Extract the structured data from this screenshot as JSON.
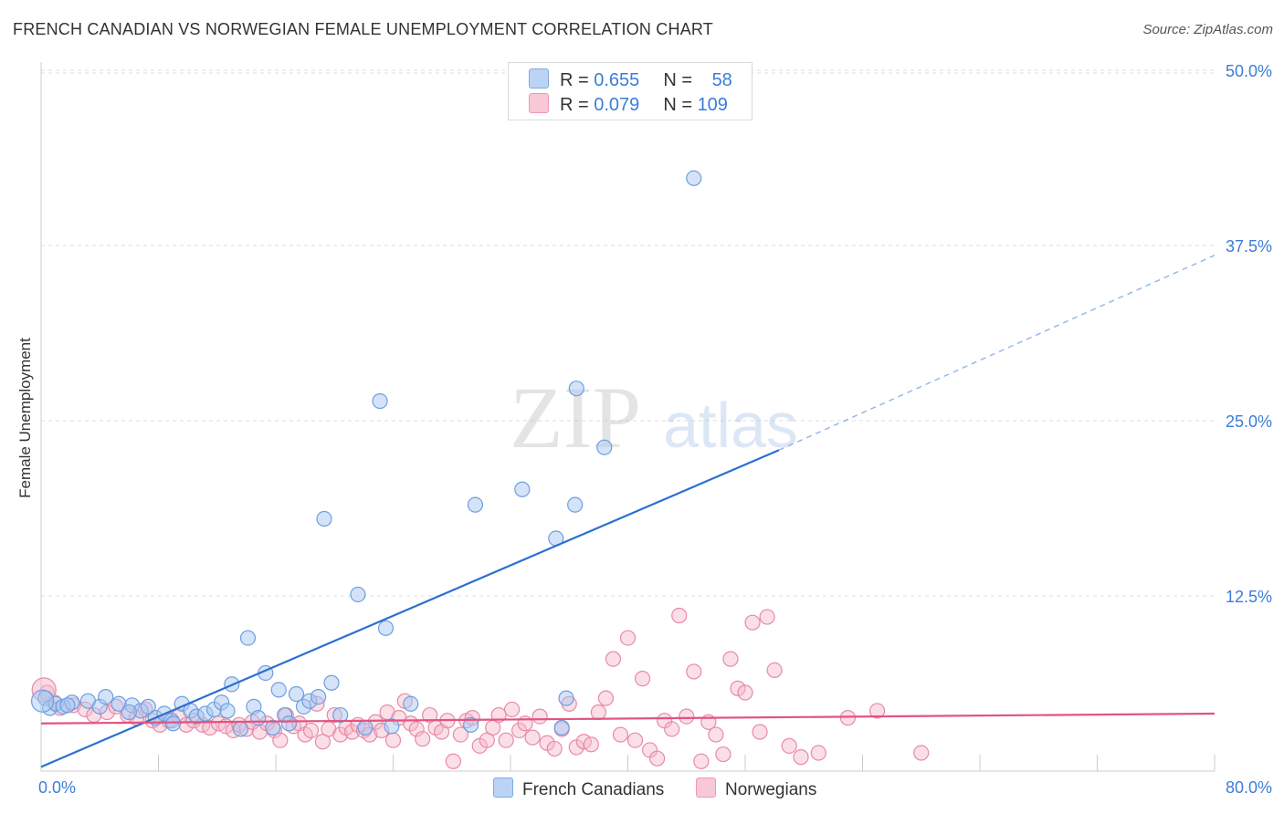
{
  "header": {
    "title": "FRENCH CANADIAN VS NORWEGIAN FEMALE UNEMPLOYMENT CORRELATION CHART",
    "source": "Source: ZipAtlas.com"
  },
  "watermark": {
    "zip": "ZIP",
    "atlas": "atlas"
  },
  "colors": {
    "blue_fill": "#a9c8f2",
    "blue_stroke": "#6d9fe0",
    "blue_line": "#2b6fd1",
    "pink_fill": "#f4b8ca",
    "pink_stroke": "#e88aa8",
    "pink_line": "#e2547e",
    "axis_label": "#3b7dd8",
    "grid": "#dddddd"
  },
  "legend": {
    "rows": [
      {
        "r_label": "R = ",
        "r_value": "0.655",
        "n_label": "N = ",
        "n_value": "58"
      },
      {
        "r_label": "R = ",
        "r_value": "0.079",
        "n_label": "N = ",
        "n_value": "109"
      }
    ]
  },
  "chart_data": {
    "type": "scatter",
    "title": "FRENCH CANADIAN VS NORWEGIAN FEMALE UNEMPLOYMENT CORRELATION CHART",
    "xlabel": "",
    "ylabel": "Female Unemployment",
    "xlim": [
      0,
      80
    ],
    "ylim": [
      0,
      52
    ],
    "x_tick_labels": [
      "0.0%",
      "80.0%"
    ],
    "y_ticks": [
      12.5,
      25.0,
      37.5,
      50.0
    ],
    "y_tick_labels": [
      "12.5%",
      "25.0%",
      "37.5%",
      "50.0%"
    ],
    "grid": true,
    "legend_position": "top-center",
    "series": [
      {
        "name": "French Canadians",
        "r": 0.655,
        "n": 58,
        "trend": {
          "x0": 0,
          "y0": 0.3,
          "x1": 50.3,
          "y1": 22.9,
          "dashed_to_x": 80,
          "dashed_to_y": 36.8
        },
        "points": [
          [
            0.3,
            5.2
          ],
          [
            0.6,
            4.5
          ],
          [
            1.0,
            4.8
          ],
          [
            1.5,
            4.6
          ],
          [
            2.1,
            4.9
          ],
          [
            3.2,
            5.0
          ],
          [
            4.0,
            4.6
          ],
          [
            4.4,
            5.3
          ],
          [
            5.3,
            4.8
          ],
          [
            6.2,
            4.7
          ],
          [
            6.8,
            4.3
          ],
          [
            7.3,
            4.6
          ],
          [
            7.8,
            3.8
          ],
          [
            8.4,
            4.1
          ],
          [
            8.9,
            3.6
          ],
          [
            9.6,
            4.8
          ],
          [
            10.2,
            4.3
          ],
          [
            10.6,
            3.9
          ],
          [
            11.2,
            4.1
          ],
          [
            11.8,
            4.4
          ],
          [
            12.3,
            4.9
          ],
          [
            12.7,
            4.3
          ],
          [
            13.0,
            6.2
          ],
          [
            13.6,
            3.0
          ],
          [
            14.1,
            9.5
          ],
          [
            14.5,
            4.6
          ],
          [
            14.8,
            3.8
          ],
          [
            15.3,
            7.0
          ],
          [
            16.2,
            5.8
          ],
          [
            16.6,
            4.0
          ],
          [
            16.9,
            3.4
          ],
          [
            17.4,
            5.5
          ],
          [
            17.9,
            4.6
          ],
          [
            18.3,
            5.0
          ],
          [
            18.9,
            5.3
          ],
          [
            19.3,
            18.0
          ],
          [
            19.8,
            6.3
          ],
          [
            20.4,
            4.0
          ],
          [
            21.6,
            12.6
          ],
          [
            22.1,
            3.1
          ],
          [
            23.1,
            26.4
          ],
          [
            23.5,
            10.2
          ],
          [
            23.9,
            3.2
          ],
          [
            25.2,
            4.8
          ],
          [
            29.3,
            3.3
          ],
          [
            29.6,
            19.0
          ],
          [
            32.8,
            20.1
          ],
          [
            35.1,
            16.6
          ],
          [
            35.5,
            3.1
          ],
          [
            35.8,
            5.2
          ],
          [
            36.4,
            19.0
          ],
          [
            36.5,
            27.3
          ],
          [
            38.4,
            23.1
          ],
          [
            44.5,
            42.3
          ],
          [
            1.8,
            4.7
          ],
          [
            6.0,
            4.2
          ],
          [
            9.0,
            3.4
          ],
          [
            15.8,
            3.1
          ]
        ]
      },
      {
        "name": "Norwegians",
        "r": 0.079,
        "n": 109,
        "trend": {
          "x0": 0,
          "y0": 3.4,
          "x1": 80,
          "y1": 4.1
        },
        "points": [
          [
            0.4,
            5.6
          ],
          [
            0.9,
            4.9
          ],
          [
            1.3,
            4.5
          ],
          [
            2.2,
            4.7
          ],
          [
            3.0,
            4.4
          ],
          [
            3.6,
            4.0
          ],
          [
            4.5,
            4.2
          ],
          [
            5.1,
            4.6
          ],
          [
            5.9,
            4.0
          ],
          [
            6.5,
            3.8
          ],
          [
            7.1,
            4.4
          ],
          [
            7.6,
            3.6
          ],
          [
            8.1,
            3.3
          ],
          [
            8.7,
            3.6
          ],
          [
            9.4,
            3.9
          ],
          [
            9.9,
            3.3
          ],
          [
            10.4,
            3.6
          ],
          [
            11.0,
            3.3
          ],
          [
            11.5,
            3.1
          ],
          [
            12.1,
            3.4
          ],
          [
            12.6,
            3.2
          ],
          [
            13.1,
            2.9
          ],
          [
            13.5,
            3.3
          ],
          [
            14.0,
            3.0
          ],
          [
            14.4,
            3.5
          ],
          [
            14.9,
            2.8
          ],
          [
            15.4,
            3.4
          ],
          [
            15.9,
            2.9
          ],
          [
            16.3,
            2.2
          ],
          [
            16.7,
            4.0
          ],
          [
            17.2,
            3.2
          ],
          [
            17.6,
            3.4
          ],
          [
            18.0,
            2.6
          ],
          [
            18.4,
            2.9
          ],
          [
            18.8,
            4.8
          ],
          [
            19.2,
            2.1
          ],
          [
            19.6,
            3.0
          ],
          [
            20.0,
            4.0
          ],
          [
            20.4,
            2.6
          ],
          [
            20.8,
            3.1
          ],
          [
            21.2,
            2.8
          ],
          [
            21.6,
            3.3
          ],
          [
            22.0,
            2.9
          ],
          [
            22.4,
            2.6
          ],
          [
            22.8,
            3.5
          ],
          [
            23.2,
            2.9
          ],
          [
            23.6,
            4.2
          ],
          [
            24.0,
            2.2
          ],
          [
            24.4,
            3.8
          ],
          [
            24.8,
            5.0
          ],
          [
            25.2,
            3.4
          ],
          [
            25.6,
            3.0
          ],
          [
            26.0,
            2.3
          ],
          [
            26.5,
            4.0
          ],
          [
            26.9,
            3.1
          ],
          [
            27.3,
            2.8
          ],
          [
            27.7,
            3.6
          ],
          [
            28.1,
            0.7
          ],
          [
            28.6,
            2.6
          ],
          [
            29.0,
            3.6
          ],
          [
            29.4,
            3.8
          ],
          [
            29.9,
            1.8
          ],
          [
            30.4,
            2.2
          ],
          [
            30.8,
            3.1
          ],
          [
            31.2,
            4.0
          ],
          [
            31.7,
            2.2
          ],
          [
            32.1,
            4.4
          ],
          [
            32.6,
            2.9
          ],
          [
            33.0,
            3.4
          ],
          [
            33.5,
            2.4
          ],
          [
            34.0,
            3.9
          ],
          [
            34.5,
            2.0
          ],
          [
            35.0,
            1.6
          ],
          [
            35.5,
            3.0
          ],
          [
            36.0,
            4.8
          ],
          [
            36.5,
            1.7
          ],
          [
            37.0,
            2.1
          ],
          [
            37.5,
            1.9
          ],
          [
            38.0,
            4.2
          ],
          [
            38.5,
            5.2
          ],
          [
            39.0,
            8.0
          ],
          [
            39.5,
            2.6
          ],
          [
            40.0,
            9.5
          ],
          [
            40.5,
            2.2
          ],
          [
            41.0,
            6.6
          ],
          [
            41.5,
            1.5
          ],
          [
            42.0,
            0.9
          ],
          [
            42.5,
            3.6
          ],
          [
            43.0,
            3.0
          ],
          [
            43.5,
            11.1
          ],
          [
            44.0,
            3.9
          ],
          [
            44.5,
            7.1
          ],
          [
            45.0,
            0.7
          ],
          [
            45.5,
            3.5
          ],
          [
            46.0,
            2.6
          ],
          [
            46.5,
            1.2
          ],
          [
            47.0,
            8.0
          ],
          [
            47.5,
            5.9
          ],
          [
            48.0,
            5.6
          ],
          [
            48.5,
            10.6
          ],
          [
            49.0,
            2.8
          ],
          [
            49.5,
            11.0
          ],
          [
            50.0,
            7.2
          ],
          [
            51.0,
            1.8
          ],
          [
            51.8,
            1.0
          ],
          [
            53.0,
            1.3
          ],
          [
            55.0,
            3.8
          ],
          [
            57.0,
            4.3
          ],
          [
            60.0,
            1.3
          ]
        ]
      }
    ]
  },
  "bottom_legend": {
    "series_a": "French Canadians",
    "series_b": "Norwegians"
  }
}
